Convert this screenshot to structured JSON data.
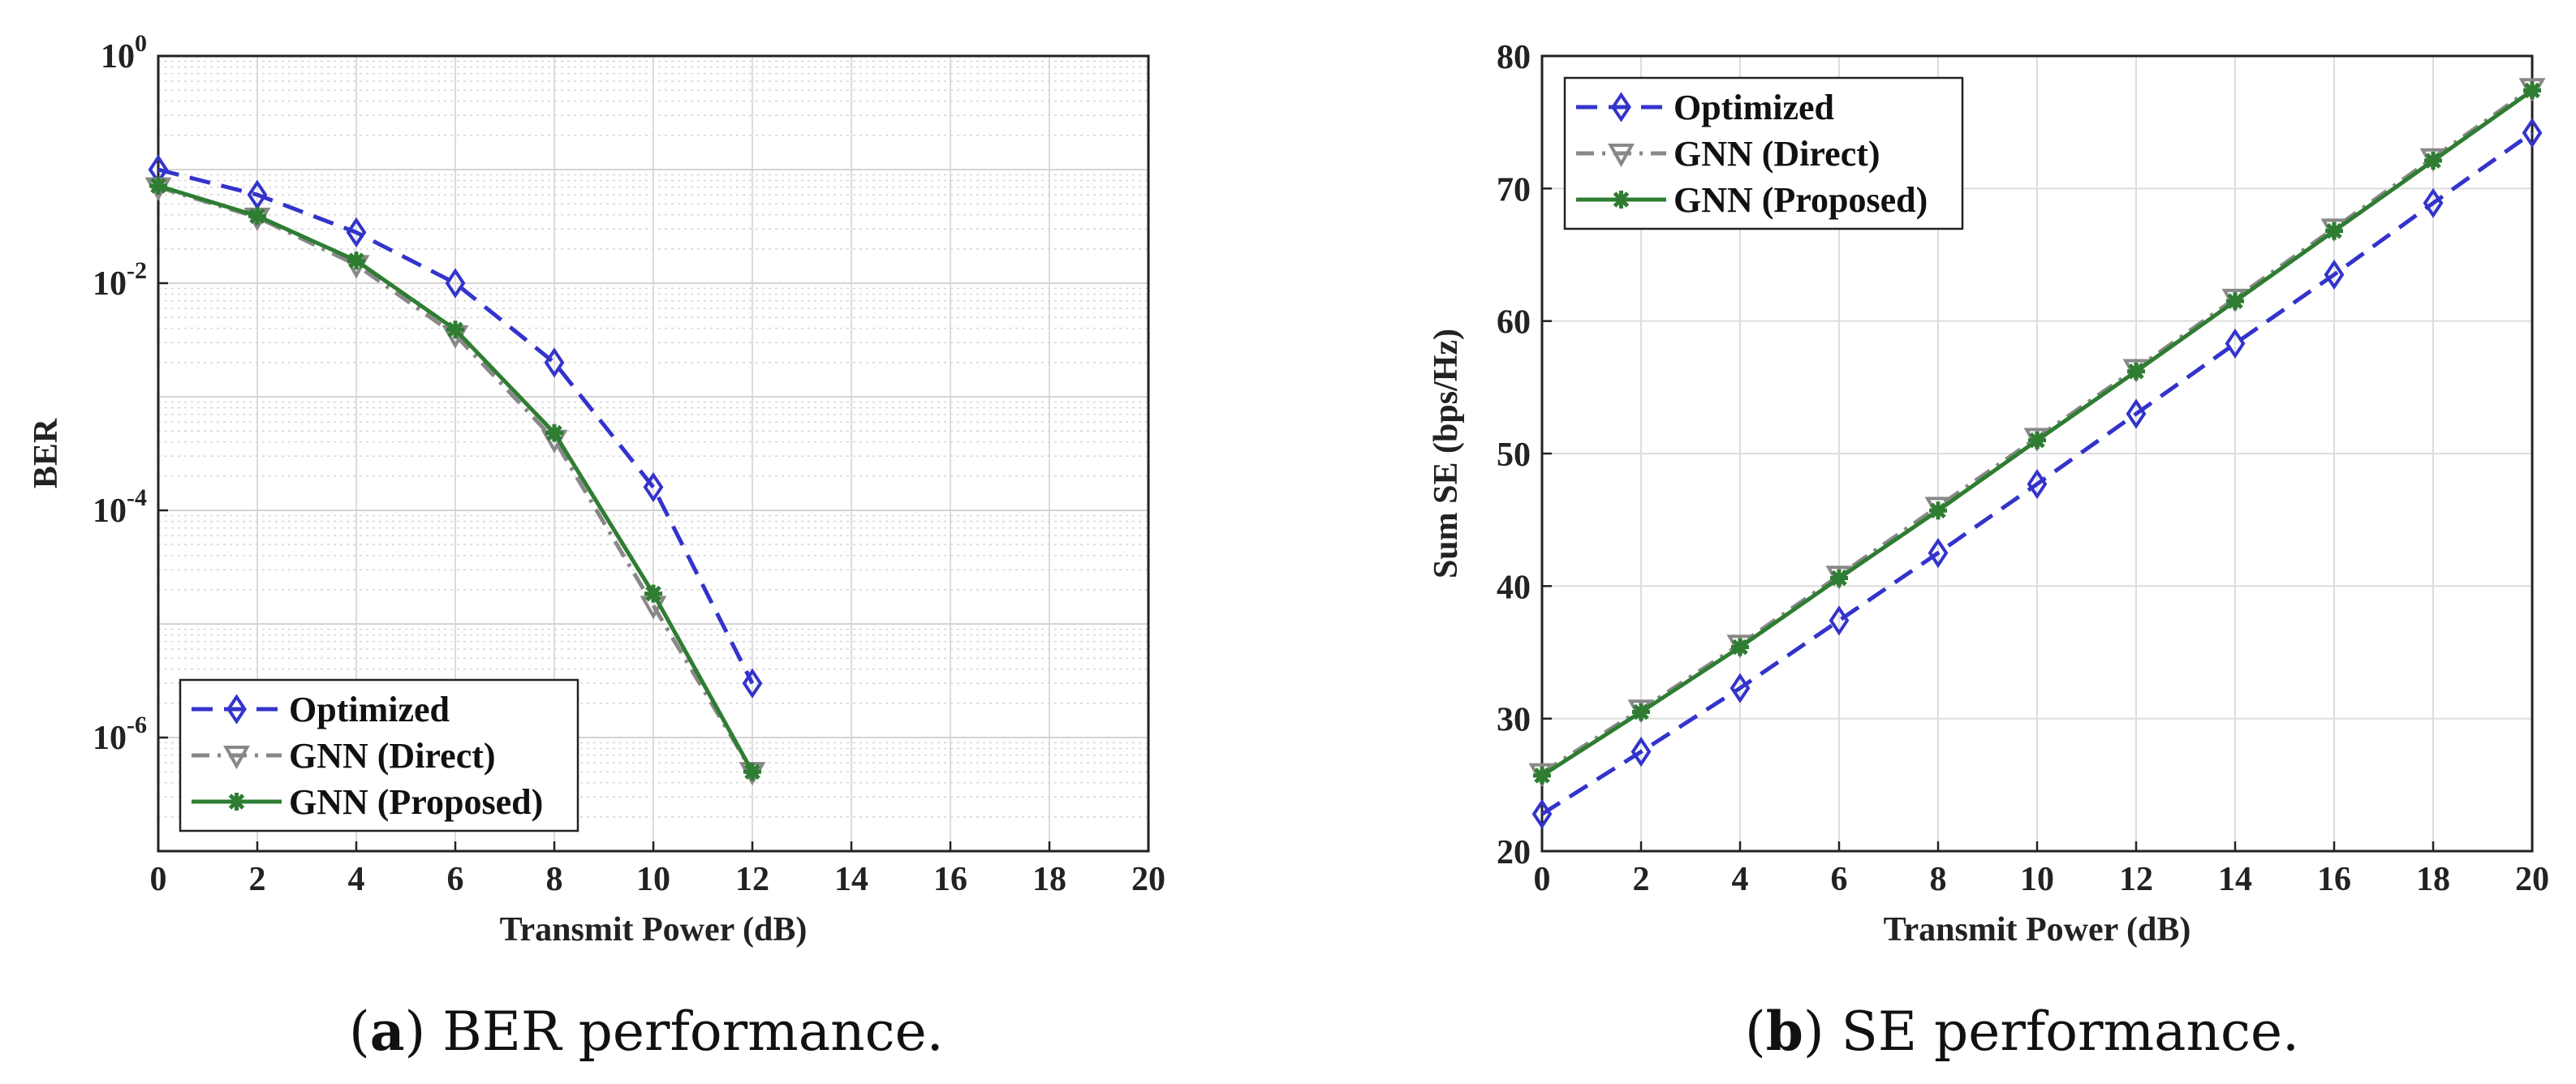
{
  "chart_data": [
    {
      "type": "line",
      "panel": "a",
      "caption_letter": "a",
      "caption_text": "BER performance.",
      "xlabel": "Transmit Power (dB)",
      "ylabel": "BER",
      "yscale": "log",
      "xlim": [
        0,
        20
      ],
      "ylim": [
        1e-07,
        1
      ],
      "xticks": [
        "0",
        "2",
        "4",
        "6",
        "8",
        "10",
        "12",
        "14",
        "16",
        "18",
        "20"
      ],
      "yticks": [
        {
          "value": 1,
          "base": "10",
          "exp": "0"
        },
        {
          "value": 0.01,
          "base": "10",
          "exp": "-2"
        },
        {
          "value": 0.0001,
          "base": "10",
          "exp": "-4"
        },
        {
          "value": 1e-06,
          "base": "10",
          "exp": "-6"
        }
      ],
      "grid": true,
      "legend_position": "bottom-left",
      "series": [
        {
          "name": "Optimized",
          "color": "#3333cc",
          "marker": "diamond",
          "dash": "dashed",
          "x": [
            0,
            2,
            4,
            6,
            8,
            10,
            12
          ],
          "values": [
            0.1,
            0.06,
            0.028,
            0.01,
            0.002,
            0.00016,
            3e-06
          ]
        },
        {
          "name": "GNN (Direct)",
          "color": "#888888",
          "marker": "triangle-down",
          "dash": "dashdot",
          "x": [
            0,
            2,
            4,
            6,
            8,
            10,
            12
          ],
          "values": [
            0.07,
            0.038,
            0.0145,
            0.0035,
            0.00042,
            1.45e-05,
            5e-07
          ]
        },
        {
          "name": "GNN (Proposed)",
          "color": "#2e7d32",
          "marker": "asterisk",
          "dash": "solid",
          "x": [
            0,
            2,
            4,
            6,
            8,
            10,
            12
          ],
          "values": [
            0.072,
            0.039,
            0.0158,
            0.0039,
            0.00048,
            1.85e-05,
            5e-07
          ]
        }
      ]
    },
    {
      "type": "line",
      "panel": "b",
      "caption_letter": "b",
      "caption_text": "SE performance.",
      "xlabel": "Transmit Power (dB)",
      "ylabel": "Sum SE (bps/Hz)",
      "yscale": "linear",
      "xlim": [
        0,
        20
      ],
      "ylim": [
        20,
        80
      ],
      "xticks": [
        "0",
        "2",
        "4",
        "6",
        "8",
        "10",
        "12",
        "14",
        "16",
        "18",
        "20"
      ],
      "yticks": [
        "20",
        "30",
        "40",
        "50",
        "60",
        "70",
        "80"
      ],
      "grid": true,
      "legend_position": "top-left",
      "series": [
        {
          "name": "Optimized",
          "color": "#3333cc",
          "marker": "diamond",
          "dash": "dashed",
          "x": [
            0,
            2,
            4,
            6,
            8,
            10,
            12,
            14,
            16,
            18,
            20
          ],
          "values": [
            22.8,
            27.5,
            32.3,
            37.4,
            42.5,
            47.7,
            53.0,
            58.3,
            63.5,
            68.9,
            74.2
          ]
        },
        {
          "name": "GNN (Direct)",
          "color": "#888888",
          "marker": "triangle-down",
          "dash": "dashdot",
          "x": [
            0,
            2,
            4,
            6,
            8,
            10,
            12,
            14,
            16,
            18,
            20
          ],
          "values": [
            25.9,
            30.7,
            35.6,
            40.8,
            46.0,
            51.2,
            56.4,
            61.7,
            67.0,
            72.3,
            77.6
          ]
        },
        {
          "name": "GNN (Proposed)",
          "color": "#2e7d32",
          "marker": "asterisk",
          "dash": "solid",
          "x": [
            0,
            2,
            4,
            6,
            8,
            10,
            12,
            14,
            16,
            18,
            20
          ],
          "values": [
            25.7,
            30.5,
            35.4,
            40.6,
            45.7,
            51.0,
            56.2,
            61.5,
            66.8,
            72.1,
            77.4
          ]
        }
      ]
    }
  ]
}
